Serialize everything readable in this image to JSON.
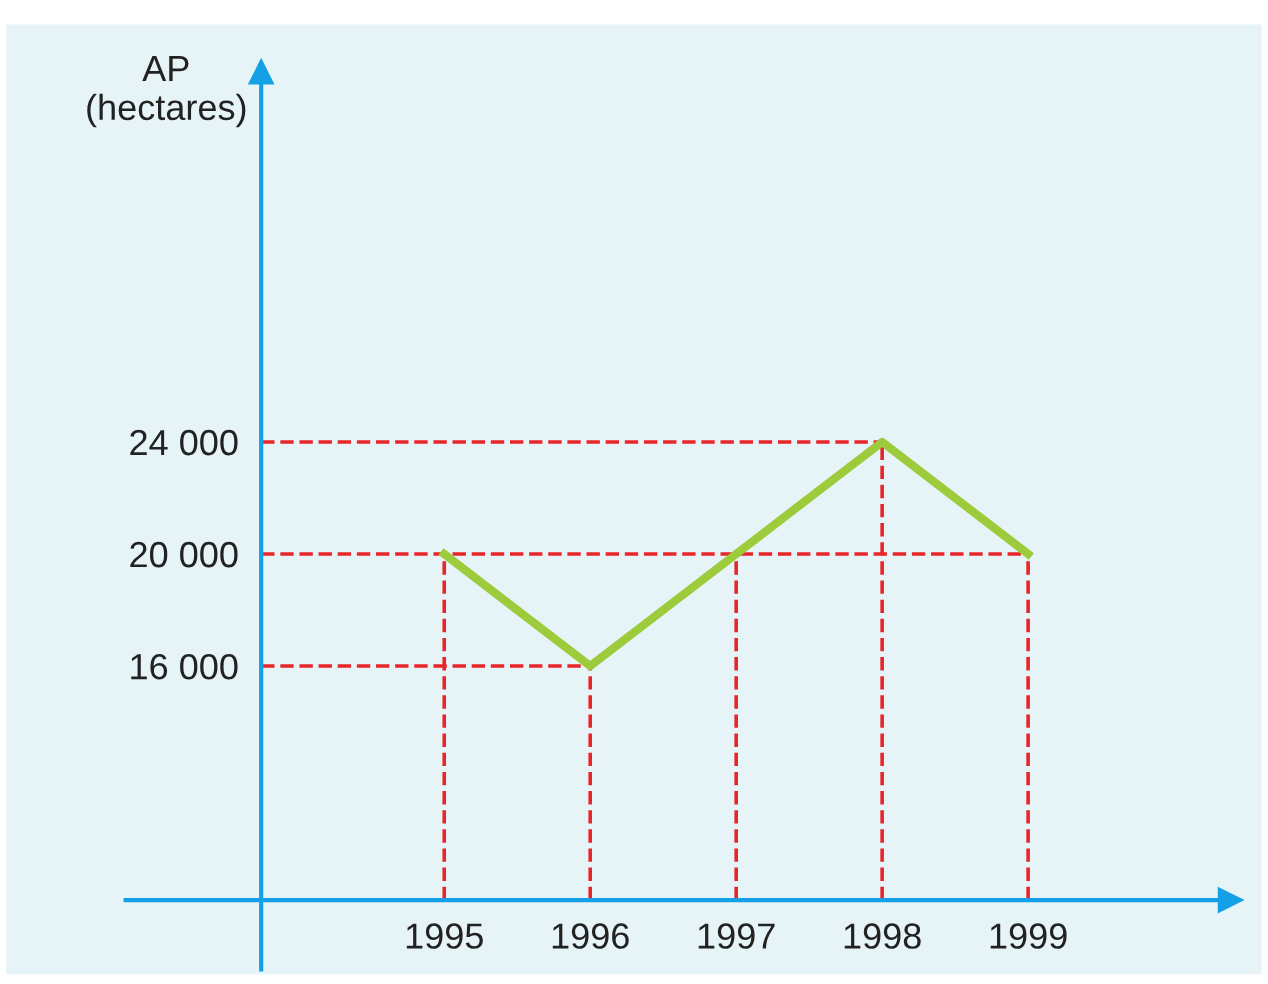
{
  "chart_data": {
    "type": "line",
    "ylabel": "AP\n(hectares)",
    "x": [
      1995,
      1996,
      1997,
      1998,
      1999
    ],
    "series": [
      {
        "color": "#9ccc3c",
        "values": [
          20000,
          16000,
          20000,
          24000,
          20000
        ]
      }
    ],
    "xlim": [
      1992,
      2000.6
    ],
    "ylim": [
      5000,
      38900
    ],
    "xticks": [
      1995,
      1996,
      1997,
      1998,
      1999
    ],
    "yticks": [
      {
        "value": 16000,
        "label": "16 000"
      },
      {
        "value": 20000,
        "label": "20 000"
      },
      {
        "value": 24000,
        "label": "24 000"
      }
    ],
    "ref_lines": [
      {
        "axis": "y",
        "value": 16000,
        "color": "#e8262a",
        "line_style": "dashed"
      },
      {
        "axis": "y",
        "value": 20000,
        "color": "#e8262a",
        "line_style": "dashed"
      },
      {
        "axis": "y",
        "value": 24000,
        "color": "#e8262a",
        "line_style": "dashed"
      },
      {
        "axis": "x",
        "value": 1995,
        "color": "#e8262a",
        "line_style": "dashed"
      },
      {
        "axis": "x",
        "value": 1996,
        "color": "#e8262a",
        "line_style": "dashed"
      },
      {
        "axis": "x",
        "value": 1997,
        "color": "#e8262a",
        "line_style": "dashed"
      },
      {
        "axis": "x",
        "value": 1998,
        "color": "#e8262a",
        "line_style": "dashed"
      },
      {
        "axis": "x",
        "value": 1999,
        "color": "#e8262a",
        "line_style": "dashed"
      }
    ],
    "grid": false,
    "marker": "none",
    "line_style": "solid"
  }
}
